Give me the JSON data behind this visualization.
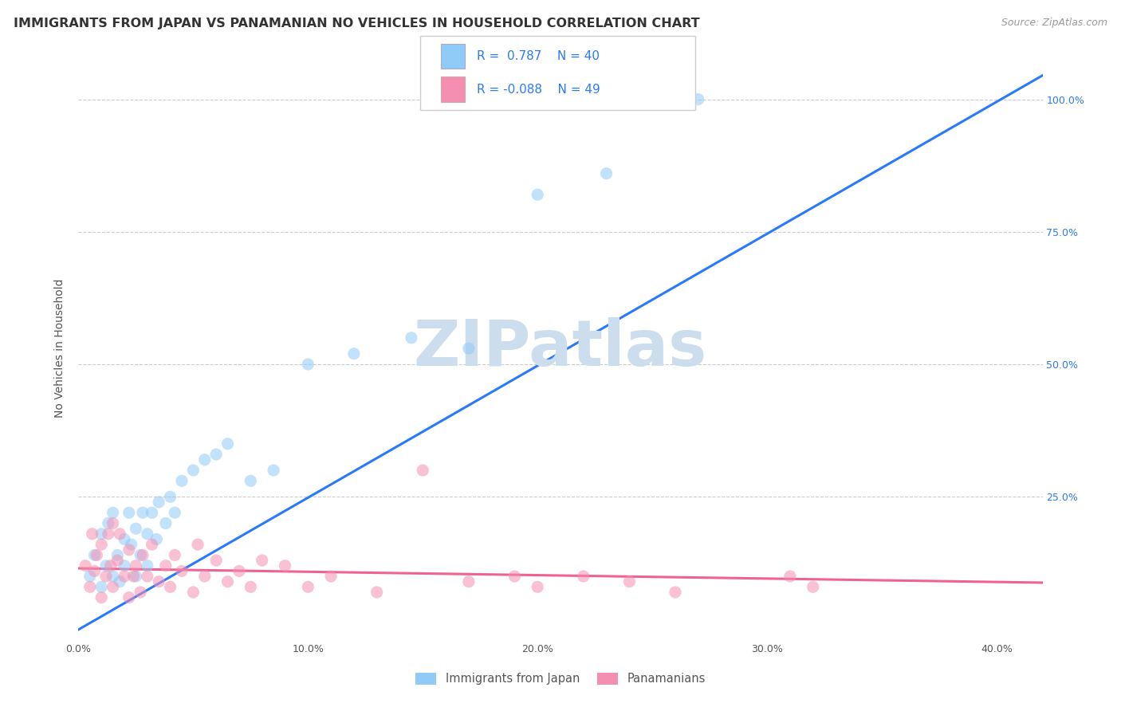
{
  "title": "IMMIGRANTS FROM JAPAN VS PANAMANIAN NO VEHICLES IN HOUSEHOLD CORRELATION CHART",
  "source_text": "Source: ZipAtlas.com",
  "ylabel": "No Vehicles in Household",
  "xlim": [
    0.0,
    0.42
  ],
  "ylim": [
    -0.02,
    1.08
  ],
  "xtick_labels": [
    "0.0%",
    "10.0%",
    "20.0%",
    "30.0%",
    "40.0%"
  ],
  "xtick_values": [
    0.0,
    0.1,
    0.2,
    0.3,
    0.4
  ],
  "ytick_values": [
    0.25,
    0.5,
    0.75,
    1.0
  ],
  "right_ytick_labels": [
    "25.0%",
    "50.0%",
    "75.0%",
    "100.0%"
  ],
  "right_ytick_values": [
    0.25,
    0.5,
    0.75,
    1.0
  ],
  "blue_color": "#90CAF9",
  "pink_color": "#F48FB1",
  "blue_line_color": "#2979FF",
  "pink_line_color": "#F06292",
  "watermark_text": "ZIPatlas",
  "watermark_color": "#CCDDED",
  "blue_scatter_x": [
    0.005,
    0.007,
    0.01,
    0.01,
    0.012,
    0.013,
    0.015,
    0.015,
    0.017,
    0.018,
    0.02,
    0.02,
    0.022,
    0.023,
    0.025,
    0.025,
    0.027,
    0.028,
    0.03,
    0.03,
    0.032,
    0.034,
    0.035,
    0.038,
    0.04,
    0.042,
    0.045,
    0.05,
    0.055,
    0.06,
    0.065,
    0.075,
    0.085,
    0.1,
    0.12,
    0.145,
    0.17,
    0.2,
    0.23,
    0.27
  ],
  "blue_scatter_y": [
    0.1,
    0.14,
    0.08,
    0.18,
    0.12,
    0.2,
    0.1,
    0.22,
    0.14,
    0.09,
    0.17,
    0.12,
    0.22,
    0.16,
    0.1,
    0.19,
    0.14,
    0.22,
    0.12,
    0.18,
    0.22,
    0.17,
    0.24,
    0.2,
    0.25,
    0.22,
    0.28,
    0.3,
    0.32,
    0.33,
    0.35,
    0.28,
    0.3,
    0.5,
    0.52,
    0.55,
    0.53,
    0.82,
    0.86,
    1.0
  ],
  "pink_scatter_x": [
    0.003,
    0.005,
    0.006,
    0.007,
    0.008,
    0.01,
    0.01,
    0.012,
    0.013,
    0.014,
    0.015,
    0.015,
    0.017,
    0.018,
    0.02,
    0.022,
    0.022,
    0.024,
    0.025,
    0.027,
    0.028,
    0.03,
    0.032,
    0.035,
    0.038,
    0.04,
    0.042,
    0.045,
    0.05,
    0.052,
    0.055,
    0.06,
    0.065,
    0.07,
    0.075,
    0.08,
    0.09,
    0.1,
    0.11,
    0.13,
    0.15,
    0.17,
    0.19,
    0.2,
    0.22,
    0.24,
    0.26,
    0.31,
    0.32
  ],
  "pink_scatter_y": [
    0.12,
    0.08,
    0.18,
    0.11,
    0.14,
    0.06,
    0.16,
    0.1,
    0.18,
    0.12,
    0.08,
    0.2,
    0.13,
    0.18,
    0.1,
    0.06,
    0.15,
    0.1,
    0.12,
    0.07,
    0.14,
    0.1,
    0.16,
    0.09,
    0.12,
    0.08,
    0.14,
    0.11,
    0.07,
    0.16,
    0.1,
    0.13,
    0.09,
    0.11,
    0.08,
    0.13,
    0.12,
    0.08,
    0.1,
    0.07,
    0.3,
    0.09,
    0.1,
    0.08,
    0.1,
    0.09,
    0.07,
    0.1,
    0.08
  ],
  "blue_line_x": [
    -0.005,
    0.42
  ],
  "blue_line_y": [
    -0.013,
    1.045
  ],
  "pink_line_x": [
    0.0,
    0.42
  ],
  "pink_line_y": [
    0.115,
    0.088
  ],
  "background_color": "#ffffff",
  "grid_color": "#cccccc",
  "title_fontsize": 11.5,
  "axis_label_fontsize": 10,
  "tick_fontsize": 9,
  "scatter_size": 120,
  "scatter_alpha": 0.55
}
